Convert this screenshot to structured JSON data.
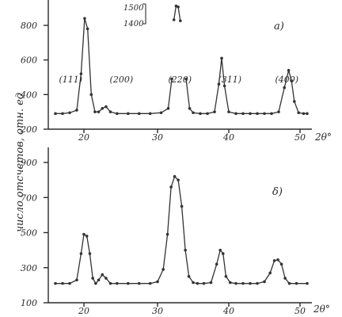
{
  "chart_data": {
    "type": "line",
    "ylabel": "число отсчетов, отн. ед",
    "panels": [
      {
        "panel_label": "a)",
        "xlabel": "2θ°",
        "x_ticks": [
          20,
          30,
          40,
          50
        ],
        "y_ticks": [
          200,
          400,
          600,
          800
        ],
        "xlim": [
          15,
          51
        ],
        "ylim": [
          200,
          900
        ],
        "peak_labels": [
          {
            "text": "(111)",
            "x": 16.5,
            "y": 470
          },
          {
            "text": "(200)",
            "x": 23.5,
            "y": 470
          },
          {
            "text": "(220)",
            "x": 31.5,
            "y": 470
          },
          {
            "text": "(311)",
            "x": 38.5,
            "y": 470
          },
          {
            "text": "(400)",
            "x": 46.5,
            "y": 470
          }
        ],
        "inset": {
          "ticks": [
            "1500",
            "1400"
          ]
        },
        "left_series": {
          "x": [
            16.0,
            17.0,
            18.0,
            19.0,
            19.6,
            20.1,
            20.5,
            21.0,
            21.5,
            22.0,
            22.5,
            23.0,
            23.6,
            24.5,
            26.0,
            27.5,
            29.0,
            30.5,
            31.5,
            32.0
          ],
          "y": [
            290,
            290,
            295,
            310,
            520,
            840,
            780,
            400,
            300,
            300,
            320,
            330,
            300,
            290,
            290,
            290,
            290,
            295,
            320,
            490
          ]
        },
        "top_segment": {
          "x": [
            32.3,
            32.6,
            32.9,
            33.2
          ],
          "y": [
            1420,
            1490,
            1485,
            1415
          ]
        },
        "right_series": {
          "x": [
            34.0,
            34.5,
            35.0,
            36.0,
            37.0,
            38.0,
            38.6,
            39.0,
            39.4,
            40.0,
            41.0,
            42.0,
            43.0,
            44.0,
            45.0,
            46.0,
            47.0,
            47.8,
            48.4,
            48.8,
            49.2,
            49.8,
            50.5,
            51.0
          ],
          "y": [
            490,
            320,
            295,
            290,
            290,
            300,
            460,
            610,
            450,
            300,
            290,
            290,
            290,
            290,
            290,
            290,
            300,
            440,
            540,
            480,
            360,
            295,
            290,
            290
          ]
        }
      },
      {
        "panel_label": "δ)",
        "xlabel": "2θ°",
        "x_ticks": [
          20,
          30,
          40,
          50
        ],
        "y_ticks": [
          100,
          300,
          500,
          700,
          900
        ],
        "xlim": [
          15,
          51
        ],
        "ylim": [
          100,
          960
        ],
        "series": {
          "x": [
            16.0,
            17.0,
            18.0,
            19.0,
            19.6,
            20.0,
            20.4,
            20.8,
            21.2,
            21.6,
            22.0,
            22.5,
            23.0,
            23.6,
            24.5,
            26.0,
            27.5,
            29.0,
            30.0,
            30.8,
            31.4,
            31.9,
            32.4,
            32.9,
            33.4,
            33.9,
            34.4,
            35.0,
            35.6,
            36.5,
            37.5,
            38.3,
            38.8,
            39.2,
            39.6,
            40.2,
            41.0,
            42.0,
            43.0,
            44.0,
            45.0,
            45.8,
            46.4,
            46.9,
            47.4,
            47.9,
            48.5,
            49.5,
            51.0
          ],
          "y": [
            210,
            210,
            210,
            230,
            380,
            490,
            480,
            380,
            240,
            210,
            230,
            260,
            240,
            210,
            210,
            210,
            210,
            210,
            220,
            290,
            490,
            760,
            820,
            800,
            650,
            400,
            250,
            215,
            210,
            210,
            215,
            320,
            400,
            380,
            250,
            215,
            210,
            210,
            210,
            210,
            220,
            270,
            340,
            345,
            320,
            240,
            210,
            210,
            210
          ]
        }
      }
    ]
  }
}
